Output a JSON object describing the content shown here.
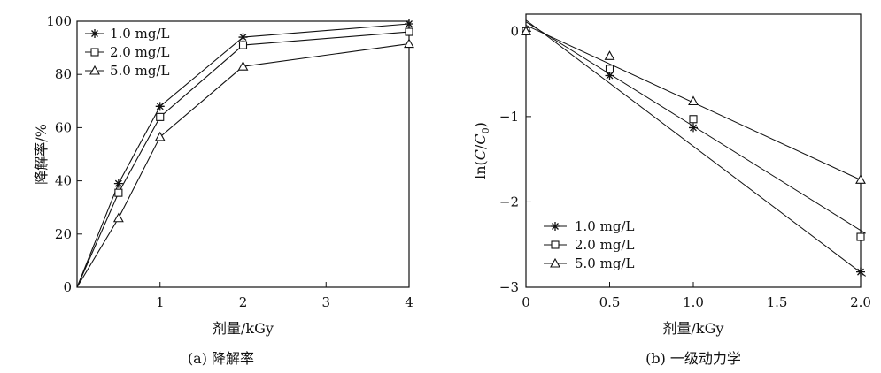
{
  "chart_data": [
    {
      "type": "line",
      "xlabel": "剂量/kGy",
      "ylabel": "降解率/%",
      "caption": "(a) 降解率",
      "xlim": [
        0,
        4
      ],
      "ylim": [
        0,
        100
      ],
      "xticks": [
        "1",
        "2",
        "3",
        "4"
      ],
      "yticks": [
        "0",
        "20",
        "40",
        "60",
        "80",
        "100"
      ],
      "legend_position": "top-left",
      "grid": false,
      "series": [
        {
          "name": "1.0 mg/L",
          "marker": "asterisk",
          "x": [
            0,
            0.5,
            1,
            2,
            4
          ],
          "y": [
            0,
            39,
            68,
            94,
            99
          ]
        },
        {
          "name": "2.0 mg/L",
          "marker": "square",
          "x": [
            0,
            0.5,
            1,
            2,
            4
          ],
          "y": [
            0,
            35.5,
            64,
            91,
            96
          ]
        },
        {
          "name": "5.0 mg/L",
          "marker": "triangle",
          "x": [
            0,
            0.5,
            1,
            2,
            4
          ],
          "y": [
            0,
            26,
            56.5,
            83,
            91.5
          ]
        }
      ]
    },
    {
      "type": "scatter",
      "xlabel": "剂量/kGy",
      "ylabel": "ln(C/C0)",
      "caption": "(b) 一级动力学",
      "xlim": [
        0,
        2
      ],
      "ylim": [
        -3,
        0.2
      ],
      "xticks": [
        "0",
        "0.5",
        "1.0",
        "1.5",
        "2.0"
      ],
      "yticks": [
        "0",
        "−1",
        "−2",
        "−3"
      ],
      "legend_position": "bottom-left",
      "grid": false,
      "series": [
        {
          "name": "1.0 mg/L",
          "marker": "asterisk",
          "x": [
            0,
            0.5,
            1,
            2
          ],
          "y": [
            0,
            -0.52,
            -1.13,
            -2.82
          ],
          "fit": [
            0.13,
            2.03,
            -2.87
          ]
        },
        {
          "name": "2.0 mg/L",
          "marker": "square",
          "x": [
            0,
            0.5,
            1,
            2
          ],
          "y": [
            0,
            -0.44,
            -1.03,
            -2.41
          ],
          "fit": [
            0.11,
            2.03,
            -2.37
          ]
        },
        {
          "name": "5.0 mg/L",
          "marker": "triangle",
          "x": [
            0,
            0.5,
            1,
            2
          ],
          "y": [
            0,
            -0.29,
            -0.82,
            -1.74
          ],
          "fit": [
            0.07,
            2.02,
            -1.76
          ]
        }
      ]
    }
  ]
}
